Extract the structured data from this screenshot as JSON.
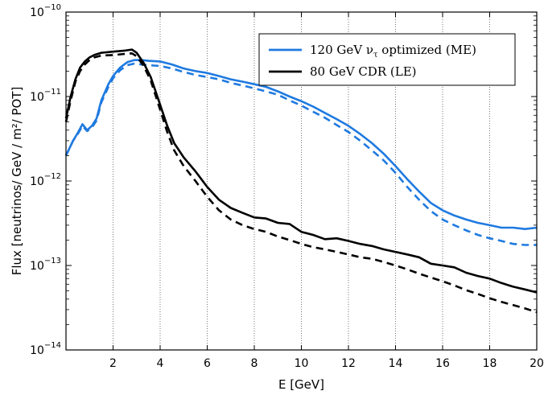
{
  "chart_data": {
    "type": "line",
    "xlabel": "E [GeV]",
    "ylabel": "Flux [neutrinos/ GeV / m²/ POT]",
    "xlim": [
      0,
      20
    ],
    "ylim": [
      1e-14,
      1e-10
    ],
    "yscale": "log",
    "x_ticks": [
      "2",
      "4",
      "6",
      "8",
      "10",
      "12",
      "14",
      "16",
      "18",
      "20"
    ],
    "x_tick_values": [
      2,
      4,
      6,
      8,
      10,
      12,
      14,
      16,
      18,
      20
    ],
    "y_ticks": [
      {
        "base": "10",
        "exp": "−10",
        "value": 1e-10
      },
      {
        "base": "10",
        "exp": "−11",
        "value": 1e-11
      },
      {
        "base": "10",
        "exp": "−12",
        "value": 1e-12
      },
      {
        "base": "10",
        "exp": "−13",
        "value": 1e-13
      },
      {
        "base": "10",
        "exp": "−14",
        "value": 1e-14
      }
    ],
    "grid": "vertical dotted",
    "legend_position": "top-right",
    "legend": [
      {
        "prefix": "120 GeV ",
        "symbol": "ν",
        "subscript": "τ",
        "suffix": " optimized (ME)",
        "color": "#1f7ae0"
      },
      {
        "prefix": "80 GeV CDR (LE)",
        "symbol": "",
        "subscript": "",
        "suffix": "",
        "color": "#000000"
      }
    ],
    "series": [
      {
        "name": "120 GeV ντ optimized (ME)",
        "color": "#1f7ae0",
        "style": "solid",
        "x": [
          0,
          0.3,
          0.5,
          0.7,
          0.9,
          1.1,
          1.3,
          1.5,
          1.8,
          2.0,
          2.3,
          2.6,
          2.9,
          3.2,
          3.5,
          4.0,
          4.5,
          5.0,
          5.5,
          6.0,
          6.5,
          7.0,
          7.5,
          8.0,
          8.5,
          9.0,
          9.5,
          10.0,
          10.5,
          11.0,
          11.5,
          12.0,
          12.5,
          13.0,
          13.5,
          14.0,
          14.5,
          15.0,
          15.5,
          16.0,
          16.5,
          17.0,
          17.5,
          18.0,
          18.5,
          19.0,
          19.5,
          20.0
        ],
        "y": [
          2e-12,
          3e-12,
          3.7e-12,
          4.7e-12,
          4e-12,
          4.5e-12,
          5.5e-12,
          9e-12,
          1.4e-11,
          1.75e-11,
          2.2e-11,
          2.55e-11,
          2.7e-11,
          2.7e-11,
          2.65e-11,
          2.6e-11,
          2.4e-11,
          2.15e-11,
          2e-11,
          1.9e-11,
          1.75e-11,
          1.6e-11,
          1.5e-11,
          1.4e-11,
          1.3e-11,
          1.15e-11,
          1e-11,
          8.8e-12,
          7.6e-12,
          6.4e-12,
          5.4e-12,
          4.5e-12,
          3.6e-12,
          2.8e-12,
          2.1e-12,
          1.5e-12,
          1.05e-12,
          7.5e-13,
          5.5e-13,
          4.5e-13,
          3.9e-13,
          3.5e-13,
          3.2e-13,
          3e-13,
          2.8e-13,
          2.8e-13,
          2.7e-13,
          2.8e-13
        ]
      },
      {
        "name": "120 GeV ντ optimized (ME) (dashed)",
        "color": "#1f7ae0",
        "style": "dashed",
        "x": [
          0,
          0.3,
          0.5,
          0.7,
          0.9,
          1.1,
          1.3,
          1.5,
          1.8,
          2.0,
          2.3,
          2.6,
          2.9,
          3.2,
          3.5,
          4.0,
          4.5,
          5.0,
          5.5,
          6.0,
          6.5,
          7.0,
          7.5,
          8.0,
          8.5,
          9.0,
          9.5,
          10.0,
          10.5,
          11.0,
          11.5,
          12.0,
          12.5,
          13.0,
          13.5,
          14.0,
          14.5,
          15.0,
          15.5,
          16.0,
          16.5,
          17.0,
          17.5,
          18.0,
          18.5,
          19.0,
          19.5,
          20.0
        ],
        "y": [
          2e-12,
          3e-12,
          3.6e-12,
          4.5e-12,
          3.9e-12,
          4.3e-12,
          5.2e-12,
          8.5e-12,
          1.3e-11,
          1.65e-11,
          2.05e-11,
          2.35e-11,
          2.45e-11,
          2.4e-11,
          2.35e-11,
          2.3e-11,
          2.15e-11,
          1.95e-11,
          1.8e-11,
          1.7e-11,
          1.6e-11,
          1.45e-11,
          1.35e-11,
          1.25e-11,
          1.15e-11,
          1.05e-11,
          9e-12,
          7.8e-12,
          6.6e-12,
          5.6e-12,
          4.6e-12,
          3.8e-12,
          3e-12,
          2.3e-12,
          1.75e-12,
          1.25e-12,
          8.5e-13,
          6e-13,
          4.4e-13,
          3.5e-13,
          3e-13,
          2.6e-13,
          2.3e-13,
          2.1e-13,
          1.95e-13,
          1.8e-13,
          1.75e-13,
          1.75e-13
        ]
      },
      {
        "name": "80 GeV CDR (LE)",
        "color": "#000000",
        "style": "solid",
        "x": [
          0,
          0.2,
          0.4,
          0.6,
          0.8,
          1.0,
          1.2,
          1.5,
          2.0,
          2.5,
          2.8,
          3.0,
          3.3,
          3.6,
          4.0,
          4.3,
          4.6,
          5.0,
          5.5,
          6.0,
          6.5,
          7.0,
          7.5,
          8.0,
          8.5,
          9.0,
          9.5,
          10.0,
          10.5,
          11.0,
          11.5,
          12.0,
          12.5,
          13.0,
          13.5,
          14.0,
          14.5,
          15.0,
          15.5,
          16.0,
          16.5,
          17.0,
          17.5,
          18.0,
          18.5,
          19.0,
          19.5,
          20.0
        ],
        "y": [
          5.5e-12,
          1e-11,
          1.6e-11,
          2.2e-11,
          2.6e-11,
          2.9e-11,
          3.1e-11,
          3.3e-11,
          3.4e-11,
          3.5e-11,
          3.6e-11,
          3.3e-11,
          2.5e-11,
          1.7e-11,
          8e-12,
          4.5e-12,
          2.8e-12,
          1.9e-12,
          1.3e-12,
          8.5e-13,
          6e-13,
          4.8e-13,
          4.2e-13,
          3.7e-13,
          3.6e-13,
          3.2e-13,
          3.1e-13,
          2.5e-13,
          2.3e-13,
          2.05e-13,
          2.1e-13,
          1.95e-13,
          1.8e-13,
          1.7e-13,
          1.55e-13,
          1.45e-13,
          1.35e-13,
          1.25e-13,
          1.05e-13,
          1e-13,
          9.5e-14,
          8.2e-14,
          7.5e-14,
          7e-14,
          6.2e-14,
          5.6e-14,
          5.2e-14,
          4.8e-14
        ]
      },
      {
        "name": "80 GeV CDR (LE) (dashed)",
        "color": "#000000",
        "style": "dashed",
        "x": [
          0,
          0.2,
          0.4,
          0.6,
          0.8,
          1.0,
          1.2,
          1.5,
          2.0,
          2.5,
          2.8,
          3.0,
          3.3,
          3.6,
          4.0,
          4.3,
          4.6,
          5.0,
          5.5,
          6.0,
          6.5,
          7.0,
          7.5,
          8.0,
          8.5,
          9.0,
          9.5,
          10.0,
          10.5,
          11.0,
          11.5,
          12.0,
          12.5,
          13.0,
          13.5,
          14.0,
          14.5,
          15.0,
          15.5,
          16.0,
          16.5,
          17.0,
          17.5,
          18.0,
          18.5,
          19.0,
          19.5,
          20.0
        ],
        "y": [
          5e-12,
          9e-12,
          1.5e-11,
          2e-11,
          2.4e-11,
          2.7e-11,
          2.9e-11,
          3.05e-11,
          3.1e-11,
          3.2e-11,
          3.25e-11,
          3e-11,
          2.3e-11,
          1.55e-11,
          7e-12,
          3.8e-12,
          2.3e-12,
          1.5e-12,
          1e-12,
          6.5e-13,
          4.5e-13,
          3.5e-13,
          3e-13,
          2.7e-13,
          2.5e-13,
          2.2e-13,
          2e-13,
          1.8e-13,
          1.65e-13,
          1.55e-13,
          1.45e-13,
          1.35e-13,
          1.25e-13,
          1.2e-13,
          1.1e-13,
          1e-13,
          9e-14,
          8e-14,
          7.2e-14,
          6.5e-14,
          5.8e-14,
          5.1e-14,
          4.6e-14,
          4.1e-14,
          3.7e-14,
          3.4e-14,
          3.1e-14,
          2.8e-14
        ]
      }
    ]
  }
}
